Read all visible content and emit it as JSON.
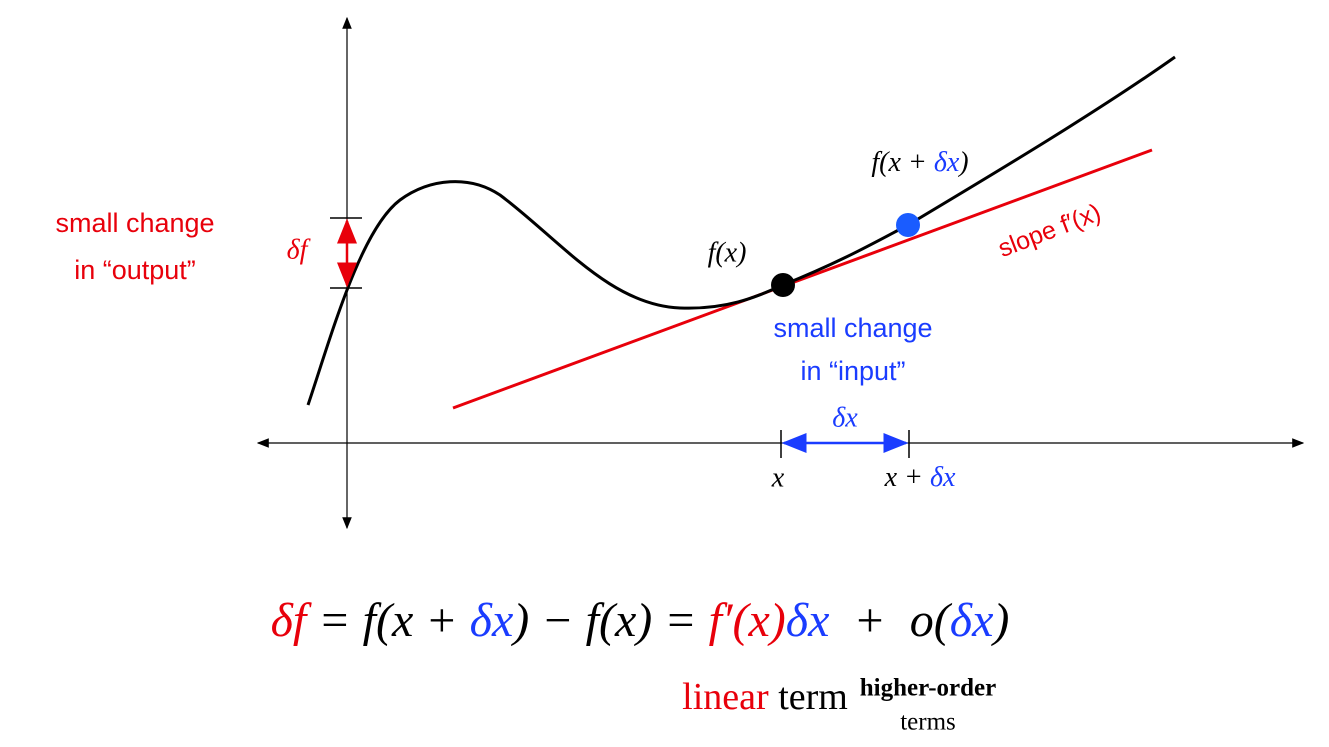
{
  "labels": {
    "output_change": [
      "small change",
      "in “output”"
    ],
    "delta_f": "δf",
    "f_x": "f(x)",
    "f_x_dx": [
      "f(x + ",
      "δx",
      ")"
    ],
    "slope": "slope f′(x)",
    "input_change": [
      "small change",
      "in “input”"
    ],
    "delta_x": "δx",
    "x_tick": "x",
    "x_dx_tick": [
      "x + ",
      "δx"
    ]
  },
  "equation": [
    "δf",
    " = f(x + ",
    "δx",
    ") − f(x) = ",
    "f′(x)",
    "δx",
    "  +  o(",
    "δx",
    ")"
  ],
  "linear_term": [
    "linear",
    " term"
  ],
  "higher_order": [
    "higher-order",
    "terms"
  ]
}
